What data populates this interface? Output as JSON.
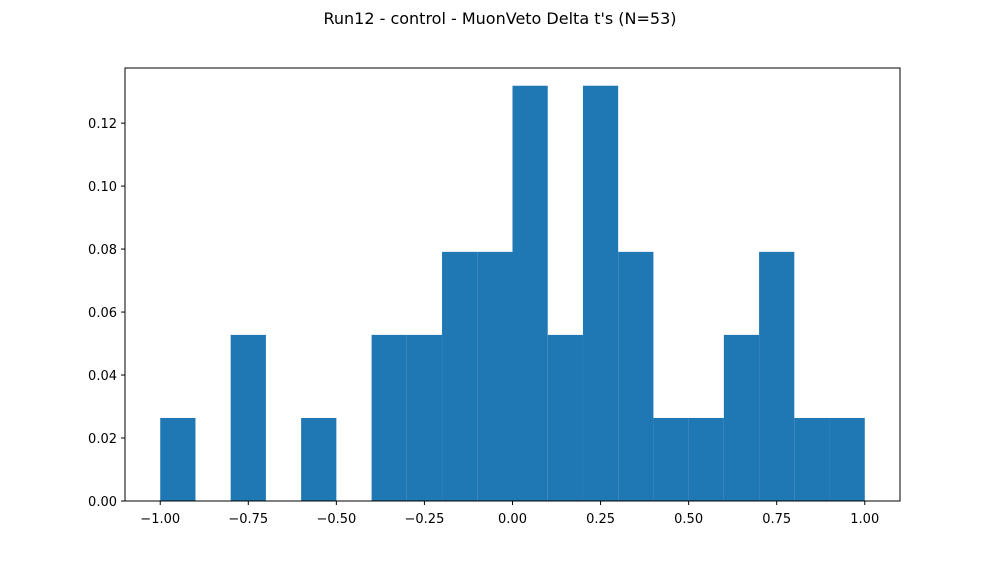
{
  "chart_data": {
    "type": "bar",
    "title": "Run12 - control - MuonVeto Delta t's (N=53)",
    "xlabel": "",
    "ylabel": "",
    "xlim": [
      -1.1,
      1.1
    ],
    "ylim": [
      0,
      0.1375
    ],
    "bar_color": "#1f77b4",
    "grid": false,
    "legend": "none",
    "bin_width": 0.1,
    "bins": [
      {
        "start": -1.0,
        "value": 0.02637
      },
      {
        "start": -0.9,
        "value": 0.0
      },
      {
        "start": -0.8,
        "value": 0.05275
      },
      {
        "start": -0.7,
        "value": 0.0
      },
      {
        "start": -0.6,
        "value": 0.02637
      },
      {
        "start": -0.5,
        "value": 0.0
      },
      {
        "start": -0.4,
        "value": 0.05275
      },
      {
        "start": -0.3,
        "value": 0.05275
      },
      {
        "start": -0.2,
        "value": 0.07912
      },
      {
        "start": -0.1,
        "value": 0.07912
      },
      {
        "start": 0.0,
        "value": 0.13187
      },
      {
        "start": 0.1,
        "value": 0.05275
      },
      {
        "start": 0.2,
        "value": 0.13187
      },
      {
        "start": 0.3,
        "value": 0.07912
      },
      {
        "start": 0.4,
        "value": 0.02637
      },
      {
        "start": 0.5,
        "value": 0.02637
      },
      {
        "start": 0.6,
        "value": 0.05275
      },
      {
        "start": 0.7,
        "value": 0.07912
      },
      {
        "start": 0.8,
        "value": 0.02637
      },
      {
        "start": 0.9,
        "value": 0.02637
      }
    ],
    "x_ticks": [
      {
        "value": -1.0,
        "label": "−1.00"
      },
      {
        "value": -0.75,
        "label": "−0.75"
      },
      {
        "value": -0.5,
        "label": "−0.50"
      },
      {
        "value": -0.25,
        "label": "−0.25"
      },
      {
        "value": 0.0,
        "label": "0.00"
      },
      {
        "value": 0.25,
        "label": "0.25"
      },
      {
        "value": 0.5,
        "label": "0.50"
      },
      {
        "value": 0.75,
        "label": "0.75"
      },
      {
        "value": 1.0,
        "label": "1.00"
      }
    ],
    "y_ticks": [
      {
        "value": 0.0,
        "label": "0.00"
      },
      {
        "value": 0.02,
        "label": "0.02"
      },
      {
        "value": 0.04,
        "label": "0.04"
      },
      {
        "value": 0.06,
        "label": "0.06"
      },
      {
        "value": 0.08,
        "label": "0.08"
      },
      {
        "value": 0.1,
        "label": "0.10"
      },
      {
        "value": 0.12,
        "label": "0.12"
      }
    ]
  }
}
